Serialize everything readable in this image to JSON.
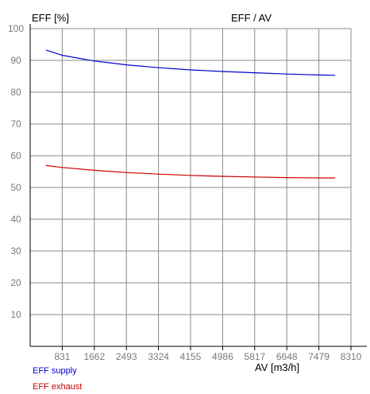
{
  "chart_data": {
    "type": "line",
    "title": "EFF / AV",
    "xlabel": "AV [m3/h]",
    "ylabel": "EFF [%]",
    "xlim": [
      0,
      8310
    ],
    "ylim": [
      0,
      100
    ],
    "x_ticks": [
      831,
      1662,
      2493,
      3324,
      4155,
      4986,
      5817,
      6648,
      7479,
      8310
    ],
    "y_ticks": [
      10,
      20,
      30,
      40,
      50,
      60,
      70,
      80,
      90,
      100
    ],
    "grid": true,
    "legend_position": "bottom-left",
    "series": [
      {
        "name": "EFF supply",
        "color": "#0000cc",
        "x": [
          416,
          831,
          1662,
          2493,
          3324,
          4155,
          4986,
          5817,
          6648,
          7479,
          7894
        ],
        "values": [
          93.2,
          91.6,
          89.8,
          88.6,
          87.7,
          87.0,
          86.5,
          86.1,
          85.7,
          85.4,
          85.3
        ]
      },
      {
        "name": "EFF exhaust",
        "color": "#cc0000",
        "x": [
          416,
          831,
          1662,
          2493,
          3324,
          4155,
          4986,
          5817,
          6648,
          7479,
          7894
        ],
        "values": [
          56.9,
          56.3,
          55.4,
          54.7,
          54.2,
          53.8,
          53.5,
          53.3,
          53.1,
          53.0,
          53.0
        ]
      }
    ]
  }
}
